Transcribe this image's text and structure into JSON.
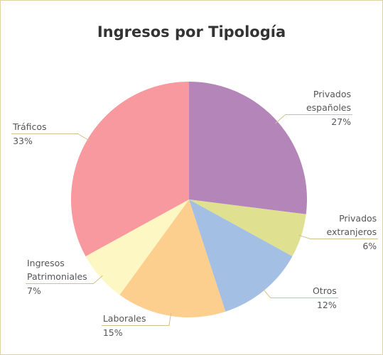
{
  "chart_data": {
    "type": "pie",
    "title": "Ingresos por Tipología",
    "categories": [
      "Privados españoles",
      "Privados extranjeros",
      "Otros",
      "Laborales",
      "Ingresos Patrimoniales",
      "Tráficos"
    ],
    "values": [
      27,
      6,
      12,
      15,
      7,
      33
    ],
    "value_labels": [
      "27%",
      "6%",
      "12%",
      "15%",
      "7%",
      "33%"
    ],
    "colors": [
      "#b385b9",
      "#e0e190",
      "#a3bfe3",
      "#fdcf8f",
      "#fdf7c3",
      "#f7999e"
    ]
  }
}
